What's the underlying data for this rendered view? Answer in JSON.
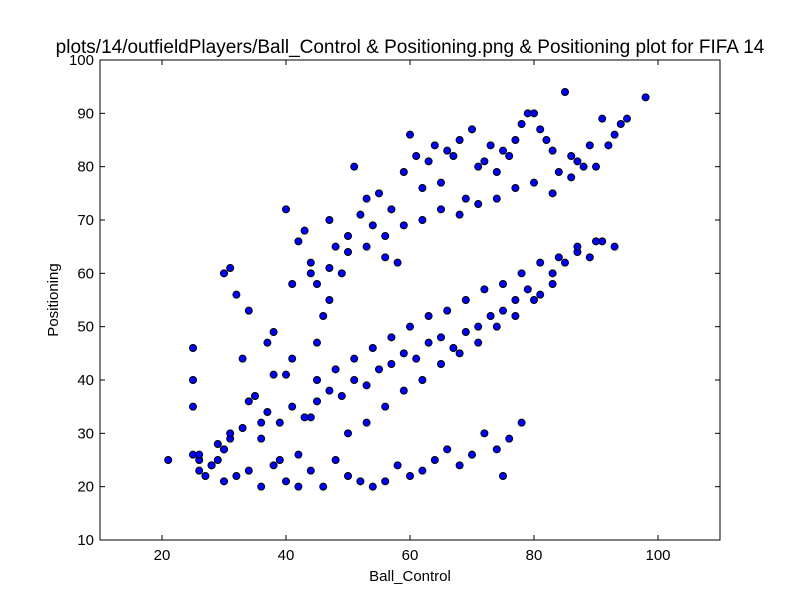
{
  "chart_data": {
    "type": "scatter",
    "title": "plots/14/outfieldPlayers/Ball_Control & Positioning.png & Positioning plot for FIFA 14",
    "xlabel": "Ball_Control",
    "ylabel": "Positioning",
    "xlim": [
      10,
      110
    ],
    "ylim": [
      10,
      100
    ],
    "x_ticks": [
      "20",
      "40",
      "60",
      "80",
      "100"
    ],
    "y_ticks": [
      "10",
      "20",
      "30",
      "40",
      "50",
      "60",
      "70",
      "80",
      "90",
      "100"
    ],
    "grid": false,
    "marker_color": "#0000ff",
    "marker_edge_color": "#000000",
    "series": [
      {
        "x": [
          21,
          25,
          25,
          25,
          25,
          26,
          26,
          27,
          28,
          29,
          30,
          30,
          31,
          31,
          32,
          33,
          34,
          34,
          35,
          36,
          37,
          38,
          38,
          39,
          40,
          40,
          41,
          42,
          42,
          43,
          44,
          44,
          45,
          45,
          46,
          47,
          47,
          48,
          49,
          50,
          51,
          52,
          53,
          54,
          55,
          56,
          57,
          58,
          59,
          60,
          61,
          62,
          63,
          64,
          65,
          66,
          67,
          68,
          69,
          70,
          71,
          72,
          73,
          74,
          75,
          76,
          77,
          78,
          79,
          80,
          81,
          82,
          83,
          84,
          85,
          86,
          87,
          88,
          89,
          90,
          91,
          92,
          93,
          94,
          95,
          98,
          75,
          78,
          74,
          76,
          70,
          72,
          68,
          66,
          64,
          62,
          60,
          58,
          56,
          54,
          52,
          50,
          48,
          46,
          44,
          42,
          40,
          38,
          36,
          34,
          32,
          30,
          28,
          26,
          29,
          30,
          31,
          33,
          36,
          37,
          39,
          41,
          43,
          45,
          47,
          49,
          51,
          53,
          55,
          57,
          59,
          61,
          63,
          65,
          67,
          69,
          71,
          73,
          75,
          77,
          79,
          81,
          83,
          85,
          87,
          89,
          91,
          93,
          41,
          44,
          47,
          50,
          53,
          56,
          59,
          62,
          65,
          68,
          71,
          74,
          77,
          80,
          83,
          86,
          45,
          48,
          51,
          54,
          57,
          60,
          63,
          66,
          69,
          72,
          75,
          78,
          81,
          84,
          87,
          90,
          50,
          53,
          56,
          59,
          62,
          65,
          68,
          71,
          74,
          77,
          80,
          83
        ],
        "y": [
          25,
          46,
          40,
          35,
          26,
          23,
          25,
          22,
          24,
          25,
          60,
          27,
          61,
          29,
          56,
          44,
          53,
          36,
          37,
          32,
          47,
          49,
          41,
          25,
          41,
          72,
          44,
          66,
          20,
          68,
          62,
          33,
          58,
          47,
          52,
          55,
          70,
          65,
          60,
          67,
          80,
          71,
          74,
          69,
          75,
          63,
          72,
          62,
          79,
          86,
          82,
          76,
          81,
          84,
          77,
          83,
          82,
          85,
          74,
          87,
          80,
          81,
          84,
          79,
          83,
          82,
          85,
          88,
          90,
          90,
          87,
          85,
          83,
          79,
          94,
          82,
          81,
          80,
          84,
          80,
          89,
          84,
          86,
          88,
          89,
          93,
          22,
          32,
          27,
          29,
          26,
          30,
          24,
          27,
          25,
          23,
          22,
          24,
          21,
          20,
          21,
          22,
          25,
          20,
          23,
          26,
          21,
          24,
          20,
          23,
          22,
          21,
          24,
          26,
          28,
          27,
          30,
          31,
          29,
          34,
          32,
          35,
          33,
          36,
          38,
          37,
          40,
          39,
          42,
          43,
          45,
          44,
          47,
          48,
          46,
          49,
          50,
          52,
          53,
          55,
          57,
          56,
          60,
          62,
          64,
          63,
          66,
          65,
          58,
          60,
          61,
          64,
          65,
          67,
          69,
          70,
          72,
          71,
          73,
          74,
          76,
          77,
          75,
          78,
          40,
          42,
          44,
          46,
          48,
          50,
          52,
          53,
          55,
          57,
          58,
          60,
          62,
          63,
          65,
          66,
          30,
          32,
          35,
          38,
          40,
          43,
          45,
          47,
          50,
          52,
          55,
          58
        ]
      }
    ]
  }
}
